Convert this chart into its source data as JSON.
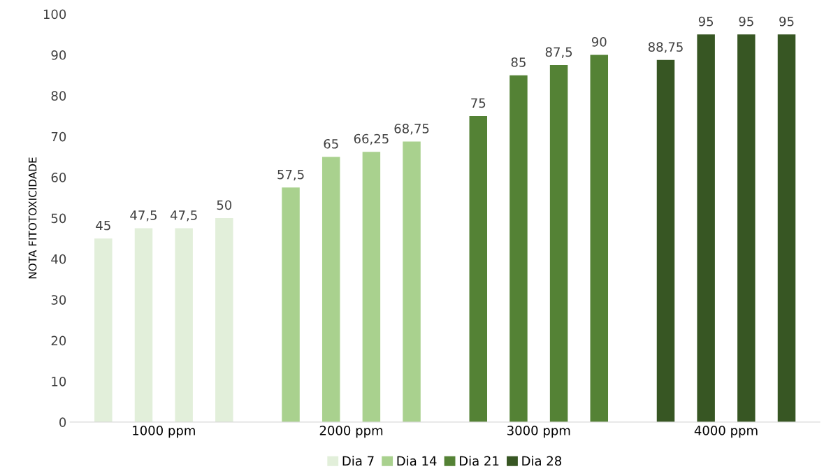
{
  "chart_data": {
    "type": "bar",
    "ylabel": "NOTA FITOTOXICIDADE",
    "categories": [
      "1000 ppm",
      "2000 ppm",
      "3000 ppm",
      "4000 ppm"
    ],
    "ylim": [
      0,
      100
    ],
    "yticks": [
      0,
      10,
      20,
      30,
      40,
      50,
      60,
      70,
      80,
      90,
      100
    ],
    "grid": false,
    "legend": "bottom",
    "series": [
      {
        "name": "Dia 7",
        "color": "#e2efda",
        "colors": [
          "#e2efda",
          "#a9d18e",
          "#548235",
          "#375623"
        ],
        "values": [
          45,
          57.5,
          75,
          88.75
        ],
        "value_labels": [
          "45",
          "57,5",
          "75",
          "88,75"
        ]
      },
      {
        "name": "Dia 14",
        "color": "#a9d18e",
        "colors": [
          "#e2efda",
          "#a9d18e",
          "#548235",
          "#375623"
        ],
        "values": [
          47.5,
          65,
          85,
          95
        ],
        "value_labels": [
          "47,5",
          "65",
          "85",
          "95"
        ]
      },
      {
        "name": "Dia 21",
        "color": "#548235",
        "colors": [
          "#e2efda",
          "#a9d18e",
          "#548235",
          "#375623"
        ],
        "values": [
          47.5,
          66.25,
          87.5,
          95
        ],
        "value_labels": [
          "47,5",
          "66,25",
          "87,5",
          "95"
        ]
      },
      {
        "name": "Dia 28",
        "color": "#375623",
        "colors": [
          "#e2efda",
          "#a9d18e",
          "#548235",
          "#375623"
        ],
        "values": [
          50,
          68.75,
          90,
          95
        ],
        "value_labels": [
          "50",
          "68,75",
          "90",
          "95"
        ]
      }
    ]
  }
}
